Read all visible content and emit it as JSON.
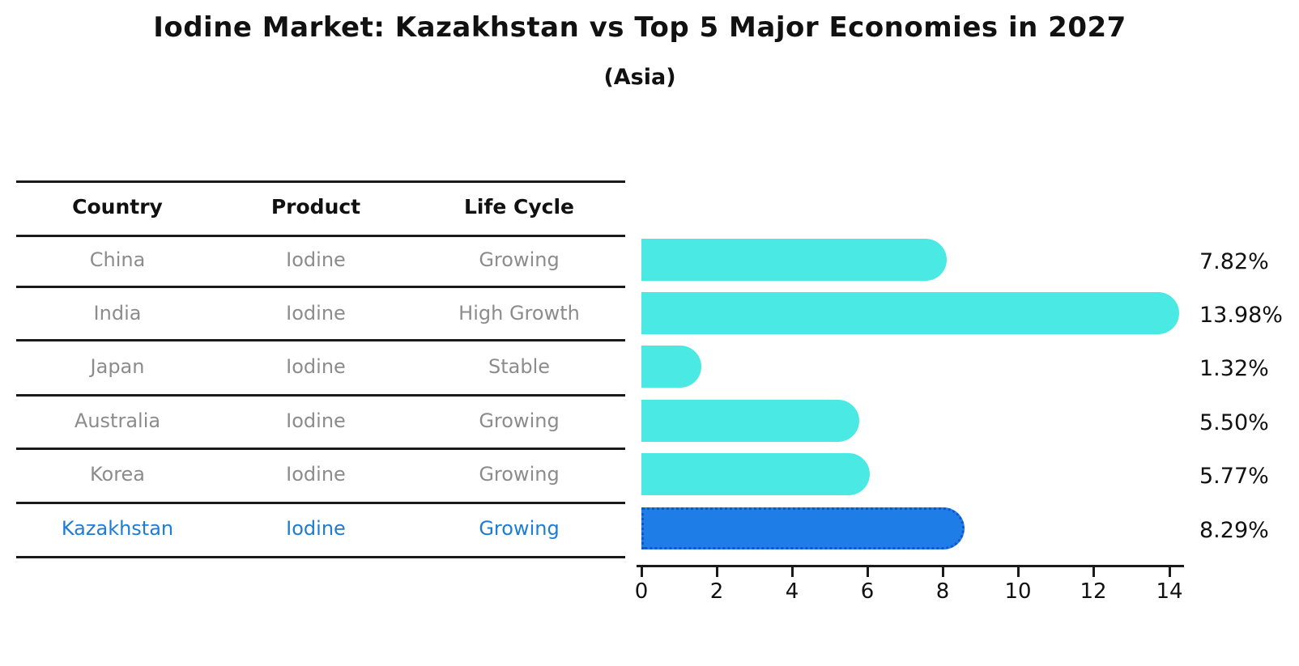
{
  "title": "Iodine Market: Kazakhstan vs Top 5 Major Economies in 2027",
  "subtitle": "(Asia)",
  "table": {
    "headers": [
      "Country",
      "Product",
      "Life Cycle"
    ],
    "rows": [
      {
        "country": "China",
        "product": "Iodine",
        "life_cycle": "Growing"
      },
      {
        "country": "India",
        "product": "Iodine",
        "life_cycle": "High Growth"
      },
      {
        "country": "Japan",
        "product": "Iodine",
        "life_cycle": "Stable"
      },
      {
        "country": "Australia",
        "product": "Iodine",
        "life_cycle": "Growing"
      },
      {
        "country": "Korea",
        "product": "Iodine",
        "life_cycle": "Growing"
      },
      {
        "country": "Kazakhstan",
        "product": "Iodine",
        "life_cycle": "Growing"
      }
    ],
    "highlight_row": "Kazakhstan"
  },
  "chart_data": {
    "type": "bar",
    "orientation": "horizontal",
    "categories": [
      "China",
      "India",
      "Japan",
      "Australia",
      "Korea",
      "Kazakhstan"
    ],
    "values": [
      7.82,
      13.98,
      1.32,
      5.5,
      5.77,
      8.29
    ],
    "value_labels": [
      "7.82%",
      "13.98%",
      "1.32%",
      "5.50%",
      "5.77%",
      "8.29%"
    ],
    "x_ticks": [
      "0",
      "2",
      "4",
      "6",
      "8",
      "10",
      "12",
      "14"
    ],
    "xlim": [
      0,
      14.4
    ],
    "xlabel": "",
    "ylabel": "",
    "grid": false,
    "legend": false,
    "bar_color": "#4ae9e3",
    "highlight_color": "#1f7de8",
    "highlight_border_color": "#1057c8",
    "highlight_index": 5,
    "highlight_text_color": "#1d7cd6"
  }
}
